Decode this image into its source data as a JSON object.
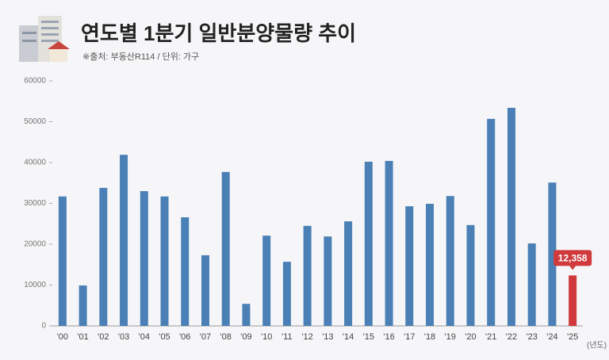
{
  "chart_data": {
    "type": "bar",
    "title": "연도별 1분기 일반분양물량 추이",
    "subtitle": "※출처: 부동산R114 / 단위: 가구",
    "x_unit": "(년도)",
    "categories": [
      "'00",
      "'01",
      "'02",
      "'03",
      "'04",
      "'05",
      "'06",
      "'07",
      "'08",
      "'09",
      "'10",
      "'11",
      "'12",
      "'13",
      "'14",
      "'15",
      "'16",
      "'17",
      "'18",
      "'19",
      "'20",
      "'21",
      "'22",
      "'23",
      "'24",
      "'25"
    ],
    "values": [
      31700,
      9900,
      33800,
      41900,
      33000,
      31700,
      26600,
      17300,
      37700,
      5400,
      22100,
      15700,
      24500,
      21900,
      25600,
      40200,
      40400,
      29300,
      29900,
      31800,
      24700,
      50700,
      53400,
      20200,
      35100,
      12358
    ],
    "value_labels": [
      null,
      null,
      null,
      null,
      null,
      null,
      null,
      null,
      null,
      null,
      null,
      null,
      null,
      null,
      null,
      null,
      null,
      null,
      null,
      null,
      null,
      null,
      null,
      null,
      null,
      "12,358"
    ],
    "colors": [
      "#4a80b6",
      "#4a80b6",
      "#4a80b6",
      "#4a80b6",
      "#4a80b6",
      "#4a80b6",
      "#4a80b6",
      "#4a80b6",
      "#4a80b6",
      "#4a80b6",
      "#4a80b6",
      "#4a80b6",
      "#4a80b6",
      "#4a80b6",
      "#4a80b6",
      "#4a80b6",
      "#4a80b6",
      "#4a80b6",
      "#4a80b6",
      "#4a80b6",
      "#4a80b6",
      "#4a80b6",
      "#4a80b6",
      "#4a80b6",
      "#4a80b6",
      "#d03a3c"
    ],
    "ylim": [
      0,
      60000
    ],
    "yticks": [
      0,
      10000,
      20000,
      30000,
      40000,
      50000,
      60000
    ]
  }
}
